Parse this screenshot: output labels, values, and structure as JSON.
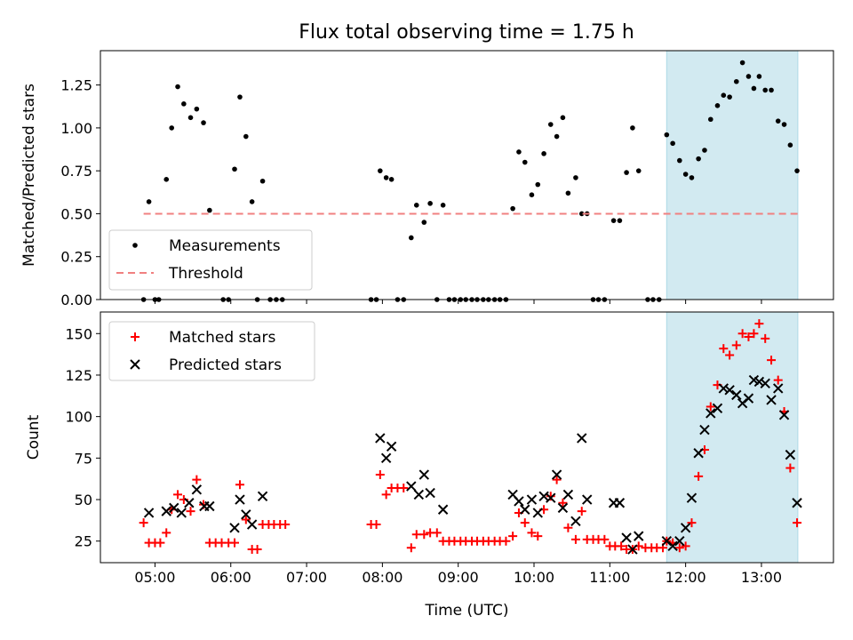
{
  "chart_data": [
    {
      "type": "scatter",
      "title": "Flux total observing time = 1.75 h",
      "ylabel": "Matched/Predicted stars",
      "xlabel": "",
      "xlim": [
        4.28,
        13.95
      ],
      "ylim": [
        0,
        1.45
      ],
      "yticks": [
        0.0,
        0.25,
        0.5,
        0.75,
        1.0,
        1.25
      ],
      "ytick_labels": [
        "0.00",
        "0.25",
        "0.50",
        "0.75",
        "1.00",
        "1.25"
      ],
      "highlight_span": {
        "x0": 11.75,
        "x1": 13.48,
        "color": "#add8e6"
      },
      "legend_position": "lower-left",
      "series": [
        {
          "name": "Measurements",
          "marker": "dot",
          "color": "#000000",
          "points": [
            [
              4.85,
              0
            ],
            [
              4.92,
              0.57
            ],
            [
              5.0,
              0
            ],
            [
              5.05,
              0
            ],
            [
              5.15,
              0.7
            ],
            [
              5.22,
              1.0
            ],
            [
              5.3,
              1.24
            ],
            [
              5.38,
              1.14
            ],
            [
              5.47,
              1.06
            ],
            [
              5.55,
              1.11
            ],
            [
              5.64,
              1.03
            ],
            [
              5.72,
              0.52
            ],
            [
              5.9,
              0
            ],
            [
              5.97,
              0
            ],
            [
              6.05,
              0.76
            ],
            [
              6.12,
              1.18
            ],
            [
              6.2,
              0.95
            ],
            [
              6.28,
              0.57
            ],
            [
              6.35,
              0
            ],
            [
              6.42,
              0.69
            ],
            [
              6.52,
              0
            ],
            [
              6.6,
              0
            ],
            [
              6.68,
              0
            ],
            [
              7.85,
              0
            ],
            [
              7.92,
              0
            ],
            [
              7.97,
              0.75
            ],
            [
              8.05,
              0.71
            ],
            [
              8.12,
              0.7
            ],
            [
              8.2,
              0
            ],
            [
              8.28,
              0
            ],
            [
              8.38,
              0.36
            ],
            [
              8.45,
              0.55
            ],
            [
              8.55,
              0.45
            ],
            [
              8.63,
              0.56
            ],
            [
              8.72,
              0
            ],
            [
              8.8,
              0.55
            ],
            [
              8.88,
              0
            ],
            [
              8.95,
              0
            ],
            [
              9.03,
              0
            ],
            [
              9.1,
              0
            ],
            [
              9.18,
              0
            ],
            [
              9.25,
              0
            ],
            [
              9.33,
              0
            ],
            [
              9.4,
              0
            ],
            [
              9.48,
              0
            ],
            [
              9.55,
              0
            ],
            [
              9.63,
              0
            ],
            [
              9.72,
              0.53
            ],
            [
              9.8,
              0.86
            ],
            [
              9.88,
              0.8
            ],
            [
              9.97,
              0.61
            ],
            [
              10.05,
              0.67
            ],
            [
              10.13,
              0.85
            ],
            [
              10.22,
              1.02
            ],
            [
              10.3,
              0.95
            ],
            [
              10.38,
              1.06
            ],
            [
              10.45,
              0.62
            ],
            [
              10.55,
              0.71
            ],
            [
              10.63,
              0.5
            ],
            [
              10.7,
              0.5
            ],
            [
              10.78,
              0
            ],
            [
              10.85,
              0
            ],
            [
              10.93,
              0
            ],
            [
              11.05,
              0.46
            ],
            [
              11.13,
              0.46
            ],
            [
              11.22,
              0.74
            ],
            [
              11.3,
              1.0
            ],
            [
              11.38,
              0.75
            ],
            [
              11.5,
              0
            ],
            [
              11.57,
              0
            ],
            [
              11.65,
              0
            ],
            [
              11.75,
              0.96
            ],
            [
              11.83,
              0.91
            ],
            [
              11.92,
              0.81
            ],
            [
              12.0,
              0.73
            ],
            [
              12.08,
              0.71
            ],
            [
              12.17,
              0.82
            ],
            [
              12.25,
              0.87
            ],
            [
              12.33,
              1.05
            ],
            [
              12.42,
              1.13
            ],
            [
              12.5,
              1.19
            ],
            [
              12.58,
              1.18
            ],
            [
              12.67,
              1.27
            ],
            [
              12.75,
              1.38
            ],
            [
              12.83,
              1.3
            ],
            [
              12.9,
              1.23
            ],
            [
              12.97,
              1.3
            ],
            [
              13.05,
              1.22
            ],
            [
              13.13,
              1.22
            ],
            [
              13.22,
              1.04
            ],
            [
              13.3,
              1.02
            ],
            [
              13.38,
              0.9
            ],
            [
              13.47,
              0.75
            ]
          ]
        },
        {
          "name": "Threshold",
          "marker": "dashed-line",
          "color": "#f08080",
          "points": [
            [
              4.85,
              0.5
            ],
            [
              13.48,
              0.5
            ]
          ]
        }
      ]
    },
    {
      "type": "scatter",
      "title": "",
      "ylabel": "Count",
      "xlabel": "Time (UTC)",
      "xlim": [
        4.28,
        13.95
      ],
      "ylim": [
        12,
        163
      ],
      "yticks": [
        25,
        50,
        75,
        100,
        125,
        150
      ],
      "ytick_labels": [
        "25",
        "50",
        "75",
        "100",
        "125",
        "150"
      ],
      "xticks": [
        5,
        6,
        7,
        8,
        9,
        10,
        11,
        12,
        13
      ],
      "xtick_labels": [
        "05:00",
        "06:00",
        "07:00",
        "08:00",
        "09:00",
        "10:00",
        "11:00",
        "12:00",
        "13:00"
      ],
      "highlight_span": {
        "x0": 11.75,
        "x1": 13.48,
        "color": "#add8e6"
      },
      "legend_position": "upper-left",
      "series": [
        {
          "name": "Matched stars",
          "marker": "plus",
          "color": "#ff0000",
          "points": [
            [
              4.85,
              36
            ],
            [
              4.92,
              24
            ],
            [
              5.0,
              24
            ],
            [
              5.07,
              24
            ],
            [
              5.15,
              30
            ],
            [
              5.22,
              44
            ],
            [
              5.3,
              53
            ],
            [
              5.38,
              50
            ],
            [
              5.47,
              43
            ],
            [
              5.55,
              62
            ],
            [
              5.64,
              47
            ],
            [
              5.72,
              24
            ],
            [
              5.8,
              24
            ],
            [
              5.88,
              24
            ],
            [
              5.97,
              24
            ],
            [
              6.05,
              24
            ],
            [
              6.12,
              59
            ],
            [
              6.2,
              38
            ],
            [
              6.28,
              20
            ],
            [
              6.35,
              20
            ],
            [
              6.42,
              35
            ],
            [
              6.5,
              35
            ],
            [
              6.57,
              35
            ],
            [
              6.65,
              35
            ],
            [
              6.72,
              35
            ],
            [
              7.85,
              35
            ],
            [
              7.92,
              35
            ],
            [
              7.97,
              65
            ],
            [
              8.05,
              53
            ],
            [
              8.12,
              57
            ],
            [
              8.2,
              57
            ],
            [
              8.28,
              57
            ],
            [
              8.38,
              21
            ],
            [
              8.45,
              29
            ],
            [
              8.55,
              29
            ],
            [
              8.63,
              30
            ],
            [
              8.72,
              30
            ],
            [
              8.8,
              25
            ],
            [
              8.88,
              25
            ],
            [
              8.95,
              25
            ],
            [
              9.03,
              25
            ],
            [
              9.1,
              25
            ],
            [
              9.18,
              25
            ],
            [
              9.25,
              25
            ],
            [
              9.33,
              25
            ],
            [
              9.4,
              25
            ],
            [
              9.48,
              25
            ],
            [
              9.55,
              25
            ],
            [
              9.63,
              25
            ],
            [
              9.72,
              28
            ],
            [
              9.8,
              42
            ],
            [
              9.88,
              36
            ],
            [
              9.97,
              30
            ],
            [
              10.05,
              28
            ],
            [
              10.13,
              44
            ],
            [
              10.22,
              52
            ],
            [
              10.3,
              62
            ],
            [
              10.38,
              48
            ],
            [
              10.45,
              33
            ],
            [
              10.55,
              26
            ],
            [
              10.63,
              43
            ],
            [
              10.7,
              26
            ],
            [
              10.78,
              26
            ],
            [
              10.85,
              26
            ],
            [
              10.93,
              26
            ],
            [
              11.0,
              22
            ],
            [
              11.07,
              22
            ],
            [
              11.15,
              22
            ],
            [
              11.22,
              20
            ],
            [
              11.3,
              20
            ],
            [
              11.38,
              22
            ],
            [
              11.47,
              21
            ],
            [
              11.55,
              21
            ],
            [
              11.62,
              21
            ],
            [
              11.7,
              21
            ],
            [
              11.75,
              25
            ],
            [
              11.83,
              24
            ],
            [
              11.92,
              21
            ],
            [
              12.0,
              22
            ],
            [
              12.08,
              36
            ],
            [
              12.17,
              64
            ],
            [
              12.25,
              80
            ],
            [
              12.33,
              106
            ],
            [
              12.42,
              119
            ],
            [
              12.5,
              141
            ],
            [
              12.58,
              137
            ],
            [
              12.67,
              143
            ],
            [
              12.75,
              150
            ],
            [
              12.83,
              148
            ],
            [
              12.9,
              150
            ],
            [
              12.97,
              156
            ],
            [
              13.05,
              147
            ],
            [
              13.13,
              134
            ],
            [
              13.22,
              122
            ],
            [
              13.3,
              103
            ],
            [
              13.38,
              69
            ],
            [
              13.47,
              36
            ]
          ]
        },
        {
          "name": "Predicted stars",
          "marker": "x",
          "color": "#000000",
          "points": [
            [
              4.92,
              42
            ],
            [
              5.15,
              43
            ],
            [
              5.25,
              45
            ],
            [
              5.35,
              42
            ],
            [
              5.45,
              48
            ],
            [
              5.55,
              56
            ],
            [
              5.65,
              46
            ],
            [
              5.72,
              46
            ],
            [
              6.05,
              33
            ],
            [
              6.12,
              50
            ],
            [
              6.2,
              41
            ],
            [
              6.28,
              35
            ],
            [
              6.42,
              52
            ],
            [
              7.97,
              87
            ],
            [
              8.05,
              75
            ],
            [
              8.12,
              82
            ],
            [
              8.38,
              58
            ],
            [
              8.48,
              53
            ],
            [
              8.55,
              65
            ],
            [
              8.63,
              54
            ],
            [
              8.8,
              44
            ],
            [
              9.72,
              53
            ],
            [
              9.8,
              49
            ],
            [
              9.88,
              44
            ],
            [
              9.97,
              50
            ],
            [
              10.05,
              42
            ],
            [
              10.13,
              52
            ],
            [
              10.22,
              51
            ],
            [
              10.3,
              65
            ],
            [
              10.38,
              45
            ],
            [
              10.45,
              53
            ],
            [
              10.55,
              37
            ],
            [
              10.63,
              87
            ],
            [
              10.7,
              50
            ],
            [
              11.05,
              48
            ],
            [
              11.13,
              48
            ],
            [
              11.22,
              27
            ],
            [
              11.3,
              20
            ],
            [
              11.38,
              28
            ],
            [
              11.75,
              25
            ],
            [
              11.83,
              22
            ],
            [
              11.92,
              25
            ],
            [
              12.0,
              33
            ],
            [
              12.08,
              51
            ],
            [
              12.17,
              78
            ],
            [
              12.25,
              92
            ],
            [
              12.33,
              102
            ],
            [
              12.42,
              105
            ],
            [
              12.5,
              117
            ],
            [
              12.58,
              116
            ],
            [
              12.67,
              113
            ],
            [
              12.75,
              108
            ],
            [
              12.83,
              111
            ],
            [
              12.9,
              122
            ],
            [
              12.97,
              121
            ],
            [
              13.05,
              120
            ],
            [
              13.13,
              110
            ],
            [
              13.22,
              117
            ],
            [
              13.3,
              101
            ],
            [
              13.38,
              77
            ],
            [
              13.47,
              48
            ]
          ]
        }
      ]
    }
  ]
}
